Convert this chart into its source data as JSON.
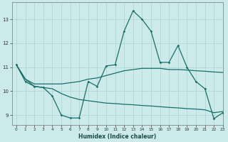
{
  "xlabel": "Humidex (Indice chaleur)",
  "xlim": [
    -0.5,
    23
  ],
  "ylim": [
    8.6,
    13.7
  ],
  "xticks": [
    0,
    1,
    2,
    3,
    4,
    5,
    6,
    7,
    8,
    9,
    10,
    11,
    12,
    13,
    14,
    15,
    16,
    17,
    18,
    19,
    20,
    21,
    22,
    23
  ],
  "yticks": [
    9,
    10,
    11,
    12,
    13
  ],
  "bg_color": "#cceaea",
  "grid_color": "#aad4d4",
  "line_color": "#1a6e6a",
  "spiky": {
    "x": [
      0,
      1,
      2,
      3,
      4,
      5,
      6,
      7,
      8,
      9,
      10,
      11,
      12,
      13,
      14,
      15,
      16,
      17,
      18,
      19,
      20,
      21,
      22,
      23
    ],
    "y": [
      11.1,
      10.4,
      10.2,
      10.15,
      9.8,
      9.0,
      8.88,
      8.88,
      10.4,
      10.2,
      11.05,
      11.1,
      12.5,
      13.35,
      13.0,
      12.5,
      11.2,
      11.2,
      11.9,
      11.0,
      10.4,
      10.1,
      8.85,
      9.1
    ]
  },
  "upper": {
    "x": [
      0,
      1,
      2,
      3,
      4,
      5,
      6,
      7,
      8,
      9,
      10,
      11,
      12,
      13,
      14,
      15,
      16,
      17,
      18,
      19,
      20,
      21,
      22,
      23
    ],
    "y": [
      11.1,
      10.5,
      10.3,
      10.3,
      10.3,
      10.3,
      10.35,
      10.4,
      10.5,
      10.55,
      10.65,
      10.75,
      10.85,
      10.9,
      10.95,
      10.95,
      10.95,
      10.9,
      10.9,
      10.88,
      10.85,
      10.83,
      10.8,
      10.78
    ]
  },
  "lower": {
    "x": [
      0,
      1,
      2,
      3,
      4,
      5,
      6,
      7,
      8,
      9,
      10,
      11,
      12,
      13,
      14,
      15,
      16,
      17,
      18,
      19,
      20,
      21,
      22,
      23
    ],
    "y": [
      11.1,
      10.5,
      10.2,
      10.15,
      10.1,
      9.9,
      9.75,
      9.65,
      9.6,
      9.55,
      9.5,
      9.48,
      9.45,
      9.43,
      9.4,
      9.38,
      9.35,
      9.32,
      9.3,
      9.27,
      9.25,
      9.22,
      9.1,
      9.15
    ]
  }
}
